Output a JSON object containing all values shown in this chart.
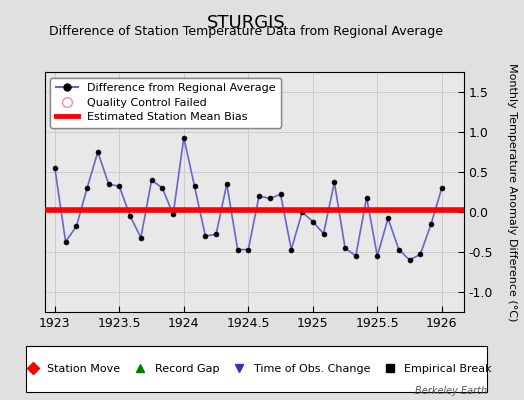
{
  "title": "STURGIS",
  "subtitle": "Difference of Station Temperature Data from Regional Average",
  "ylabel": "Monthly Temperature Anomaly Difference (°C)",
  "watermark": "Berkeley Earth",
  "xlim": [
    1922.92,
    1926.17
  ],
  "ylim": [
    -1.25,
    1.75
  ],
  "yticks": [
    -1.0,
    -0.5,
    0.0,
    0.5,
    1.0,
    1.5
  ],
  "xticks": [
    1923,
    1923.5,
    1924,
    1924.5,
    1925,
    1925.5,
    1926
  ],
  "xtick_labels": [
    "1923",
    "1923.5",
    "1924",
    "1924.5",
    "1925",
    "1925.5",
    "1926"
  ],
  "bias_line_y": 0.02,
  "data_x": [
    1923.0,
    1923.083,
    1923.167,
    1923.25,
    1923.333,
    1923.417,
    1923.5,
    1923.583,
    1923.667,
    1923.75,
    1923.833,
    1923.917,
    1924.0,
    1924.083,
    1924.167,
    1924.25,
    1924.333,
    1924.417,
    1924.5,
    1924.583,
    1924.667,
    1924.75,
    1924.833,
    1924.917,
    1925.0,
    1925.083,
    1925.167,
    1925.25,
    1925.333,
    1925.417,
    1925.5,
    1925.583,
    1925.667,
    1925.75,
    1925.833,
    1925.917,
    1926.0
  ],
  "data_y": [
    0.55,
    -0.37,
    -0.18,
    0.3,
    0.75,
    0.35,
    0.32,
    -0.05,
    -0.32,
    0.4,
    0.3,
    -0.03,
    0.93,
    0.32,
    -0.3,
    -0.28,
    0.35,
    -0.47,
    -0.47,
    0.2,
    0.17,
    0.22,
    -0.47,
    0.0,
    -0.12,
    -0.27,
    0.37,
    -0.45,
    -0.55,
    0.18,
    -0.55,
    -0.08,
    -0.47,
    -0.6,
    -0.53,
    -0.15,
    0.3
  ],
  "line_color": "#6666cc",
  "marker_color": "black",
  "bias_color": "red",
  "bg_color": "#e0e0e0",
  "plot_bg_color": "#e8e8e8",
  "grid_color": "#cccccc",
  "legend1_entries": [
    {
      "label": "Difference from Regional Average"
    },
    {
      "label": "Quality Control Failed"
    },
    {
      "label": "Estimated Station Mean Bias"
    }
  ],
  "legend2_entries": [
    {
      "label": "Station Move",
      "color": "red",
      "marker": "D"
    },
    {
      "label": "Record Gap",
      "color": "green",
      "marker": "^"
    },
    {
      "label": "Time of Obs. Change",
      "color": "#3333bb",
      "marker": "v"
    },
    {
      "label": "Empirical Break",
      "color": "black",
      "marker": "s"
    }
  ],
  "title_fontsize": 13,
  "subtitle_fontsize": 9,
  "ylabel_fontsize": 8,
  "tick_fontsize": 9,
  "legend_fontsize": 8
}
